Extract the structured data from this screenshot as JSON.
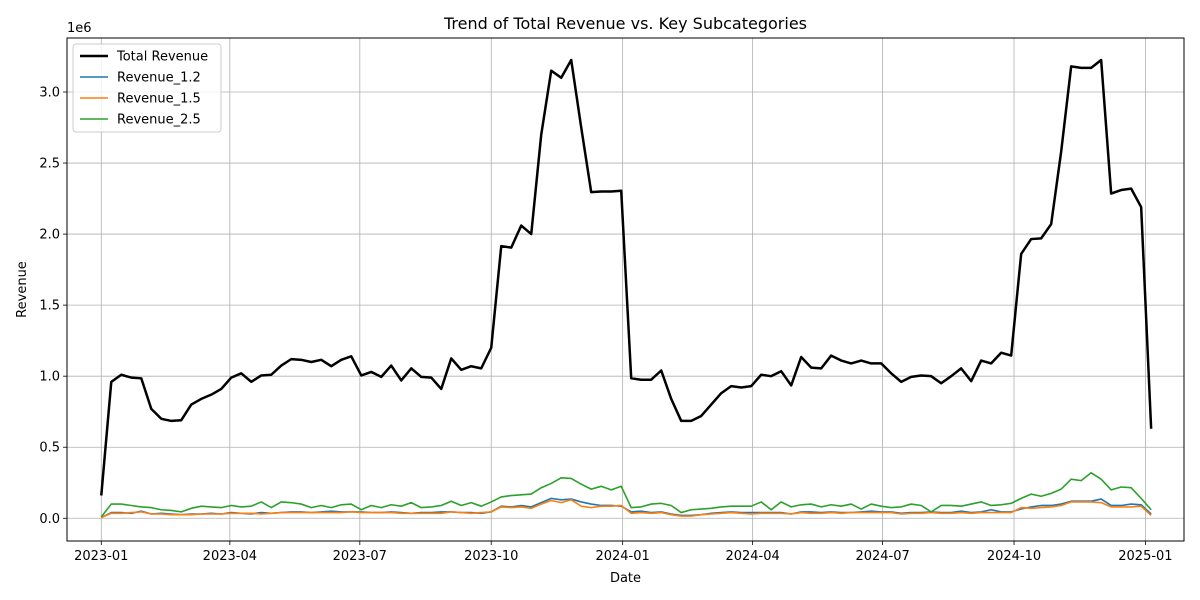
{
  "chart_data": {
    "type": "line",
    "title": "Trend of Total Revenue vs. Key Subcategories",
    "xlabel": "Date",
    "ylabel": "Revenue",
    "y_offset_label": "1e6",
    "xlim": [
      "2022-12-08",
      "2025-01-28"
    ],
    "ylim": [
      -0.16,
      3.38
    ],
    "x_ticks": [
      "2023-01",
      "2023-04",
      "2023-07",
      "2023-10",
      "2024-01",
      "2024-04",
      "2024-07",
      "2024-10",
      "2025-01"
    ],
    "y_ticks": [
      "0.0",
      "0.5",
      "1.0",
      "1.5",
      "2.0",
      "2.5",
      "3.0"
    ],
    "grid": true,
    "legend_position": "top-left",
    "dates": [
      "2023-01-01",
      "2023-01-08",
      "2023-01-15",
      "2023-01-22",
      "2023-01-29",
      "2023-02-05",
      "2023-02-12",
      "2023-02-19",
      "2023-02-26",
      "2023-03-05",
      "2023-03-12",
      "2023-03-19",
      "2023-03-26",
      "2023-04-02",
      "2023-04-09",
      "2023-04-16",
      "2023-04-23",
      "2023-04-30",
      "2023-05-07",
      "2023-05-14",
      "2023-05-21",
      "2023-05-28",
      "2023-06-04",
      "2023-06-11",
      "2023-06-18",
      "2023-06-25",
      "2023-07-02",
      "2023-07-09",
      "2023-07-16",
      "2023-07-23",
      "2023-07-30",
      "2023-08-06",
      "2023-08-13",
      "2023-08-20",
      "2023-08-27",
      "2023-09-03",
      "2023-09-10",
      "2023-09-17",
      "2023-09-24",
      "2023-10-01",
      "2023-10-08",
      "2023-10-15",
      "2023-10-22",
      "2023-10-29",
      "2023-11-05",
      "2023-11-12",
      "2023-11-19",
      "2023-11-26",
      "2023-12-03",
      "2023-12-10",
      "2023-12-17",
      "2023-12-24",
      "2023-12-31",
      "2024-01-07",
      "2024-01-14",
      "2024-01-21",
      "2024-01-28",
      "2024-02-04",
      "2024-02-11",
      "2024-02-18",
      "2024-02-25",
      "2024-03-03",
      "2024-03-10",
      "2024-03-17",
      "2024-03-24",
      "2024-03-31",
      "2024-04-07",
      "2024-04-14",
      "2024-04-21",
      "2024-04-28",
      "2024-05-05",
      "2024-05-12",
      "2024-05-19",
      "2024-05-26",
      "2024-06-02",
      "2024-06-09",
      "2024-06-16",
      "2024-06-23",
      "2024-06-30",
      "2024-07-07",
      "2024-07-14",
      "2024-07-21",
      "2024-07-28",
      "2024-08-04",
      "2024-08-11",
      "2024-08-18",
      "2024-08-25",
      "2024-09-01",
      "2024-09-08",
      "2024-09-15",
      "2024-09-22",
      "2024-09-29",
      "2024-10-06",
      "2024-10-13",
      "2024-10-20",
      "2024-10-27",
      "2024-11-03",
      "2024-11-10",
      "2024-11-17",
      "2024-11-24",
      "2024-12-01",
      "2024-12-08",
      "2024-12-15",
      "2024-12-22",
      "2024-12-29",
      "2025-01-05"
    ],
    "series": [
      {
        "name": "Total Revenue",
        "color": "#000000",
        "width": 2.5,
        "values": [
          0.16,
          0.96,
          1.01,
          0.99,
          0.985,
          0.77,
          0.7,
          0.685,
          0.69,
          0.8,
          0.84,
          0.87,
          0.91,
          0.99,
          1.02,
          0.96,
          1.005,
          1.01,
          1.075,
          1.12,
          1.115,
          1.1,
          1.115,
          1.07,
          1.115,
          1.14,
          1.005,
          1.03,
          0.995,
          1.075,
          0.97,
          1.055,
          0.995,
          0.99,
          0.91,
          1.125,
          1.045,
          1.07,
          1.055,
          1.2,
          1.915,
          1.905,
          2.06,
          2.0,
          2.7,
          3.15,
          3.1,
          3.225,
          2.75,
          2.295,
          2.3,
          2.3,
          2.305,
          0.985,
          0.975,
          0.975,
          1.04,
          0.84,
          0.685,
          0.685,
          0.72,
          0.8,
          0.88,
          0.93,
          0.92,
          0.93,
          1.01,
          1.0,
          1.035,
          0.935,
          1.135,
          1.06,
          1.055,
          1.145,
          1.11,
          1.09,
          1.11,
          1.09,
          1.09,
          1.02,
          0.96,
          0.995,
          1.005,
          1.0,
          0.95,
          1.0,
          1.055,
          0.965,
          1.11,
          1.09,
          1.165,
          1.145,
          1.86,
          1.965,
          1.97,
          2.07,
          2.58,
          3.18,
          3.17,
          3.17,
          3.225,
          2.285,
          2.31,
          2.32,
          2.19,
          0.63
        ]
      },
      {
        "name": "Revenue_1.2",
        "color": "#1f77b4",
        "width": 1.6,
        "values": [
          0.005,
          0.04,
          0.04,
          0.035,
          0.05,
          0.03,
          0.035,
          0.03,
          0.025,
          0.03,
          0.03,
          0.035,
          0.03,
          0.04,
          0.035,
          0.03,
          0.04,
          0.035,
          0.04,
          0.045,
          0.045,
          0.04,
          0.045,
          0.05,
          0.045,
          0.045,
          0.045,
          0.04,
          0.04,
          0.045,
          0.04,
          0.035,
          0.04,
          0.04,
          0.045,
          0.045,
          0.04,
          0.04,
          0.035,
          0.045,
          0.085,
          0.08,
          0.09,
          0.08,
          0.11,
          0.14,
          0.13,
          0.135,
          0.115,
          0.1,
          0.09,
          0.09,
          0.085,
          0.045,
          0.05,
          0.04,
          0.045,
          0.03,
          0.02,
          0.02,
          0.025,
          0.035,
          0.04,
          0.045,
          0.04,
          0.04,
          0.04,
          0.04,
          0.04,
          0.03,
          0.045,
          0.045,
          0.04,
          0.045,
          0.04,
          0.04,
          0.045,
          0.05,
          0.045,
          0.045,
          0.035,
          0.04,
          0.04,
          0.045,
          0.04,
          0.04,
          0.05,
          0.04,
          0.045,
          0.06,
          0.045,
          0.045,
          0.065,
          0.08,
          0.09,
          0.09,
          0.1,
          0.12,
          0.12,
          0.12,
          0.135,
          0.09,
          0.09,
          0.1,
          0.095,
          0.03
        ]
      },
      {
        "name": "Revenue_1.5",
        "color": "#ff7f0e",
        "width": 1.6,
        "values": [
          0.005,
          0.035,
          0.035,
          0.04,
          0.045,
          0.03,
          0.03,
          0.025,
          0.025,
          0.025,
          0.03,
          0.03,
          0.03,
          0.035,
          0.035,
          0.035,
          0.03,
          0.035,
          0.04,
          0.04,
          0.04,
          0.04,
          0.04,
          0.04,
          0.04,
          0.045,
          0.04,
          0.04,
          0.04,
          0.04,
          0.035,
          0.035,
          0.035,
          0.035,
          0.035,
          0.045,
          0.04,
          0.035,
          0.04,
          0.045,
          0.08,
          0.075,
          0.08,
          0.07,
          0.1,
          0.125,
          0.11,
          0.13,
          0.085,
          0.075,
          0.085,
          0.085,
          0.09,
          0.035,
          0.04,
          0.035,
          0.04,
          0.025,
          0.015,
          0.015,
          0.025,
          0.03,
          0.035,
          0.04,
          0.035,
          0.03,
          0.035,
          0.035,
          0.035,
          0.03,
          0.04,
          0.035,
          0.035,
          0.04,
          0.035,
          0.04,
          0.04,
          0.04,
          0.04,
          0.04,
          0.03,
          0.035,
          0.035,
          0.04,
          0.035,
          0.035,
          0.04,
          0.035,
          0.04,
          0.04,
          0.04,
          0.04,
          0.075,
          0.07,
          0.075,
          0.08,
          0.09,
          0.115,
          0.115,
          0.115,
          0.11,
          0.08,
          0.08,
          0.08,
          0.085,
          0.02
        ]
      },
      {
        "name": "Revenue_2.5",
        "color": "#2ca02c",
        "width": 1.6,
        "values": [
          0.01,
          0.1,
          0.1,
          0.09,
          0.08,
          0.075,
          0.06,
          0.055,
          0.045,
          0.07,
          0.085,
          0.08,
          0.075,
          0.09,
          0.08,
          0.085,
          0.115,
          0.075,
          0.115,
          0.11,
          0.1,
          0.075,
          0.09,
          0.075,
          0.095,
          0.1,
          0.06,
          0.09,
          0.075,
          0.095,
          0.085,
          0.11,
          0.075,
          0.08,
          0.09,
          0.12,
          0.09,
          0.11,
          0.085,
          0.115,
          0.15,
          0.16,
          0.165,
          0.17,
          0.215,
          0.245,
          0.285,
          0.28,
          0.24,
          0.205,
          0.225,
          0.2,
          0.225,
          0.075,
          0.08,
          0.1,
          0.105,
          0.09,
          0.04,
          0.06,
          0.065,
          0.07,
          0.08,
          0.085,
          0.085,
          0.085,
          0.115,
          0.06,
          0.115,
          0.08,
          0.095,
          0.1,
          0.08,
          0.095,
          0.085,
          0.1,
          0.065,
          0.1,
          0.085,
          0.075,
          0.08,
          0.1,
          0.09,
          0.045,
          0.09,
          0.09,
          0.085,
          0.1,
          0.115,
          0.09,
          0.095,
          0.105,
          0.14,
          0.17,
          0.155,
          0.175,
          0.205,
          0.275,
          0.265,
          0.32,
          0.275,
          0.2,
          0.22,
          0.215,
          0.14,
          0.06
        ]
      }
    ]
  }
}
